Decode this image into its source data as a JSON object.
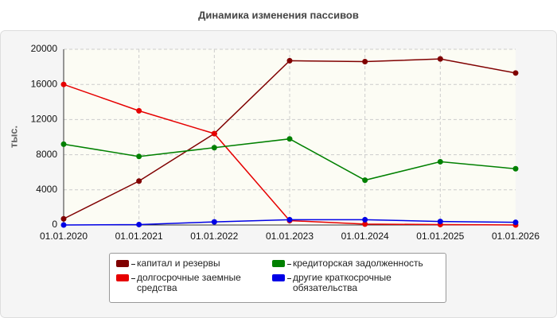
{
  "chart_data": {
    "type": "line",
    "title": "Динамика изменения пассивов",
    "y_label": "тыс.",
    "categories": [
      "01.01.2020",
      "01.01.2021",
      "01.01.2022",
      "01.01.2023",
      "01.01.2024",
      "01.01.2025",
      "01.01.2026"
    ],
    "series": [
      {
        "name": "капитал и резервы",
        "color": "#800000",
        "values": [
          700,
          5000,
          10400,
          18700,
          18600,
          18900,
          17300
        ]
      },
      {
        "name": "долгосрочные заемные средства",
        "color": "#e60000",
        "values": [
          16000,
          13000,
          10400,
          500,
          100,
          50,
          0
        ]
      },
      {
        "name": "кредиторская задолженность",
        "color": "#008000",
        "values": [
          9200,
          7800,
          8800,
          9800,
          5100,
          7200,
          6400
        ]
      },
      {
        "name": "другие краткосрочные обязательства",
        "color": "#0000e6",
        "values": [
          0,
          50,
          350,
          600,
          600,
          400,
          300
        ]
      }
    ],
    "ylim": [
      0,
      20000
    ],
    "yticks": [
      0,
      4000,
      8000,
      12000,
      16000,
      20000
    ],
    "grid": true
  }
}
